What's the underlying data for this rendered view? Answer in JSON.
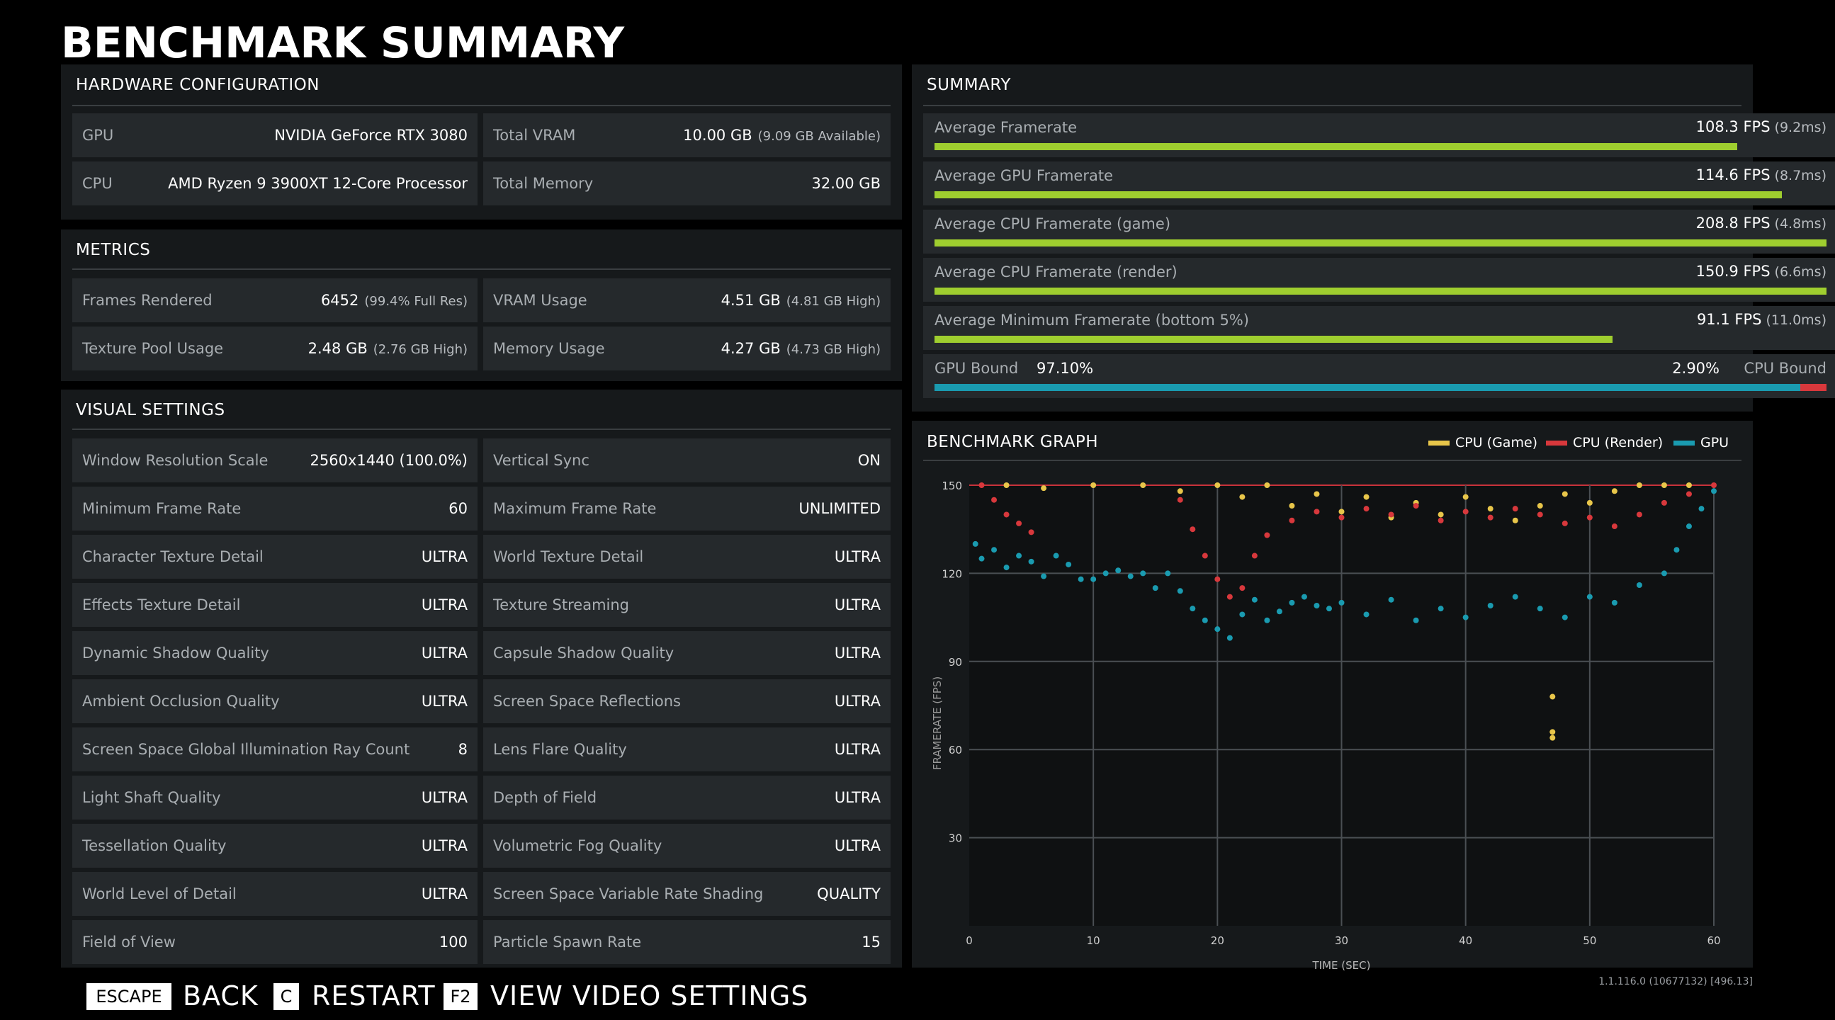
{
  "page_title": "BENCHMARK SUMMARY",
  "hardware": {
    "title": "HARDWARE CONFIGURATION",
    "gpu_label": "GPU",
    "gpu_value": "NVIDIA GeForce RTX 3080",
    "cpu_label": "CPU",
    "cpu_value": "AMD Ryzen 9 3900XT 12-Core Processor",
    "vram_label": "Total VRAM",
    "vram_value": "10.00 GB",
    "vram_sub": "(9.09 GB Available)",
    "memory_label": "Total Memory",
    "memory_value": "32.00 GB"
  },
  "metrics": {
    "title": "METRICS",
    "frames_label": "Frames Rendered",
    "frames_value": "6452",
    "frames_sub": "(99.4% Full Res)",
    "vram_label": "VRAM Usage",
    "vram_value": "4.51 GB",
    "vram_sub": "(4.81 GB High)",
    "texture_label": "Texture Pool Usage",
    "texture_value": "2.48 GB",
    "texture_sub": "(2.76 GB High)",
    "memory_label": "Memory Usage",
    "memory_value": "4.27 GB",
    "memory_sub": "(4.73 GB High)"
  },
  "visual": {
    "title": "VISUAL SETTINGS",
    "rows": [
      {
        "l_label": "Window Resolution Scale",
        "l_value": "2560x1440 (100.0%)",
        "r_label": "Vertical Sync",
        "r_value": "ON"
      },
      {
        "l_label": "Minimum Frame Rate",
        "l_value": "60",
        "r_label": "Maximum Frame Rate",
        "r_value": "UNLIMITED"
      },
      {
        "l_label": "Character Texture Detail",
        "l_value": "ULTRA",
        "r_label": "World Texture Detail",
        "r_value": "ULTRA"
      },
      {
        "l_label": "Effects Texture Detail",
        "l_value": "ULTRA",
        "r_label": "Texture Streaming",
        "r_value": "ULTRA"
      },
      {
        "l_label": "Dynamic Shadow Quality",
        "l_value": "ULTRA",
        "r_label": "Capsule Shadow Quality",
        "r_value": "ULTRA"
      },
      {
        "l_label": "Ambient Occlusion Quality",
        "l_value": "ULTRA",
        "r_label": "Screen Space Reflections",
        "r_value": "ULTRA"
      },
      {
        "l_label": "Screen Space Global Illumination Ray Count",
        "l_value": "8",
        "r_label": "Lens Flare Quality",
        "r_value": "ULTRA"
      },
      {
        "l_label": "Light Shaft Quality",
        "l_value": "ULTRA",
        "r_label": "Depth of Field",
        "r_value": "ULTRA"
      },
      {
        "l_label": "Tessellation Quality",
        "l_value": "ULTRA",
        "r_label": "Volumetric Fog Quality",
        "r_value": "ULTRA"
      },
      {
        "l_label": "World Level of Detail",
        "l_value": "ULTRA",
        "r_label": "Screen Space Variable Rate Shading",
        "r_value": "QUALITY"
      },
      {
        "l_label": "Field of View",
        "l_value": "100",
        "r_label": "Particle Spawn Rate",
        "r_value": "15"
      }
    ]
  },
  "summary": {
    "title": "SUMMARY",
    "rows": [
      {
        "label": "Average Framerate",
        "value": "108.3 FPS",
        "sub": "(9.2ms)",
        "fill_percent": 90
      },
      {
        "label": "Average GPU Framerate",
        "value": "114.6 FPS",
        "sub": "(8.7ms)",
        "fill_percent": 95
      },
      {
        "label": "Average CPU Framerate (game)",
        "value": "208.8 FPS",
        "sub": "(4.8ms)",
        "fill_percent": 100
      },
      {
        "label": "Average CPU Framerate (render)",
        "value": "150.9 FPS",
        "sub": "(6.6ms)",
        "fill_percent": 100
      },
      {
        "label": "Average Minimum Framerate (bottom 5%)",
        "value": "91.1 FPS",
        "sub": "(11.0ms)",
        "fill_percent": 76
      }
    ],
    "bound": {
      "gpu_label": "GPU Bound",
      "gpu_value": "97.10%",
      "cpu_value": "2.90%",
      "cpu_label": "CPU Bound",
      "gpu_percent": 97.1,
      "gpu_color": "#1a9bb0",
      "cpu_color": "#d8383c"
    }
  },
  "graph": {
    "title": "BENCHMARK GRAPH",
    "legend": [
      {
        "name": "CPU (Game)",
        "color": "#e8c64a"
      },
      {
        "name": "CPU (Render)",
        "color": "#d8383c"
      },
      {
        "name": "GPU",
        "color": "#1a9bb0"
      }
    ]
  },
  "chart_data": {
    "type": "scatter",
    "xlabel": "TIME (SEC)",
    "ylabel": "FRAMERATE (FPS)",
    "xlim": [
      0,
      60
    ],
    "ylim": [
      0,
      150
    ],
    "x_ticks": [
      0,
      10,
      20,
      30,
      40,
      50,
      60
    ],
    "y_ticks": [
      30,
      60,
      90,
      120,
      150
    ],
    "grid": true,
    "legend_position": "top-right",
    "series": [
      {
        "name": "CPU (Game)",
        "color": "#e8c64a",
        "points": [
          [
            3,
            150
          ],
          [
            6,
            149
          ],
          [
            10,
            150
          ],
          [
            14,
            150
          ],
          [
            17,
            148
          ],
          [
            20,
            150
          ],
          [
            22,
            146
          ],
          [
            24,
            150
          ],
          [
            26,
            143
          ],
          [
            28,
            147
          ],
          [
            30,
            141
          ],
          [
            32,
            146
          ],
          [
            34,
            139
          ],
          [
            36,
            144
          ],
          [
            38,
            140
          ],
          [
            40,
            146
          ],
          [
            42,
            142
          ],
          [
            44,
            138
          ],
          [
            46,
            143
          ],
          [
            48,
            147
          ],
          [
            50,
            144
          ],
          [
            52,
            148
          ],
          [
            54,
            150
          ],
          [
            56,
            150
          ],
          [
            58,
            150
          ],
          [
            47,
            78
          ],
          [
            47,
            66
          ],
          [
            47,
            64
          ]
        ]
      },
      {
        "name": "CPU (Render)",
        "color": "#d8383c",
        "points": [
          [
            1,
            150
          ],
          [
            2,
            145
          ],
          [
            3,
            140
          ],
          [
            4,
            137
          ],
          [
            5,
            134
          ],
          [
            17,
            145
          ],
          [
            18,
            135
          ],
          [
            19,
            126
          ],
          [
            20,
            118
          ],
          [
            21,
            112
          ],
          [
            22,
            115
          ],
          [
            23,
            126
          ],
          [
            24,
            133
          ],
          [
            26,
            138
          ],
          [
            28,
            141
          ],
          [
            30,
            139
          ],
          [
            32,
            142
          ],
          [
            34,
            140
          ],
          [
            36,
            143
          ],
          [
            38,
            138
          ],
          [
            40,
            141
          ],
          [
            42,
            139
          ],
          [
            44,
            142
          ],
          [
            46,
            140
          ],
          [
            48,
            137
          ],
          [
            50,
            139
          ],
          [
            52,
            136
          ],
          [
            54,
            140
          ],
          [
            56,
            144
          ],
          [
            58,
            147
          ],
          [
            60,
            150
          ]
        ]
      },
      {
        "name": "GPU",
        "color": "#1a9bb0",
        "points": [
          [
            0.5,
            130
          ],
          [
            1,
            125
          ],
          [
            2,
            128
          ],
          [
            3,
            122
          ],
          [
            4,
            126
          ],
          [
            5,
            124
          ],
          [
            6,
            119
          ],
          [
            7,
            126
          ],
          [
            8,
            123
          ],
          [
            9,
            118
          ],
          [
            10,
            118
          ],
          [
            11,
            120
          ],
          [
            12,
            121
          ],
          [
            13,
            119
          ],
          [
            14,
            120
          ],
          [
            15,
            115
          ],
          [
            16,
            120
          ],
          [
            17,
            114
          ],
          [
            18,
            108
          ],
          [
            19,
            104
          ],
          [
            20,
            101
          ],
          [
            21,
            98
          ],
          [
            22,
            106
          ],
          [
            23,
            111
          ],
          [
            24,
            104
          ],
          [
            25,
            107
          ],
          [
            26,
            110
          ],
          [
            27,
            112
          ],
          [
            28,
            109
          ],
          [
            29,
            108
          ],
          [
            30,
            110
          ],
          [
            32,
            106
          ],
          [
            34,
            111
          ],
          [
            36,
            104
          ],
          [
            38,
            108
          ],
          [
            40,
            105
          ],
          [
            42,
            109
          ],
          [
            44,
            112
          ],
          [
            46,
            108
          ],
          [
            48,
            105
          ],
          [
            50,
            112
          ],
          [
            52,
            110
          ],
          [
            54,
            116
          ],
          [
            56,
            120
          ],
          [
            57,
            128
          ],
          [
            58,
            136
          ],
          [
            59,
            142
          ],
          [
            60,
            148
          ]
        ]
      }
    ]
  },
  "footer": {
    "back_key": "ESCAPE",
    "back_label": "BACK",
    "restart_key": "C",
    "restart_label": "RESTART",
    "video_key": "F2",
    "video_label": "VIEW VIDEO SETTINGS",
    "version": "1.1.116.0 (10677132) [496.13]"
  }
}
